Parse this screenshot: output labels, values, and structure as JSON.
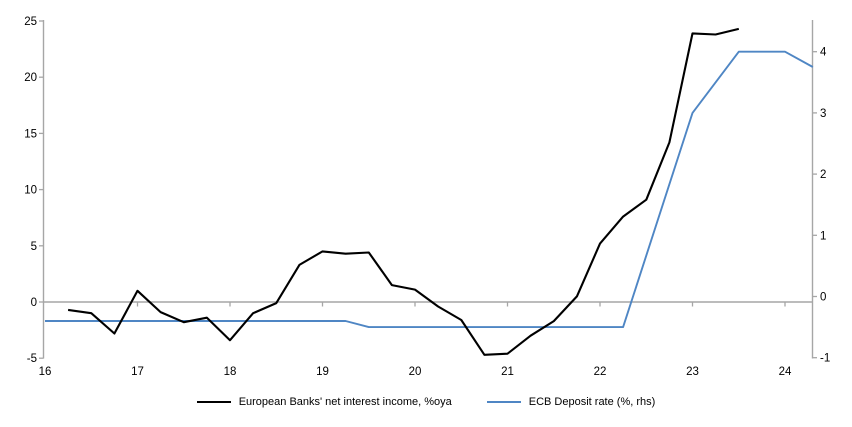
{
  "page": {
    "background": "#ffffff"
  },
  "colors": {
    "nii_line": "#000000",
    "deposit_line": "#4f86c4",
    "axis_gray": "#a6a6a6",
    "label_text": "#000000"
  },
  "legend": {
    "items": [
      {
        "label": "European Banks' net interest income, %oya",
        "color": "#000000"
      },
      {
        "label": "ECB Deposit rate (%, rhs)",
        "color": "#4f86c4"
      }
    ]
  },
  "chart_data": {
    "type": "line",
    "title": "",
    "grid": "zero-line-only",
    "legend_position": "bottom",
    "x_axis": {
      "ticks": [
        "16",
        "17",
        "18",
        "19",
        "20",
        "21",
        "22",
        "23",
        "24"
      ],
      "min": 16,
      "max": 24.3
    },
    "left_axis": {
      "label": "European Banks' net interest income, %oya",
      "ticks": [
        25,
        20,
        15,
        10,
        5,
        0,
        -5
      ],
      "ylim": [
        -5,
        25
      ]
    },
    "right_axis": {
      "label": "ECB Deposit rate (%, rhs)",
      "ticks": [
        4,
        3,
        2,
        1,
        0,
        -1
      ],
      "ylim": [
        -1.1,
        4.6
      ]
    },
    "series": [
      {
        "name": "European Banks' net interest income, %oya",
        "axis": "left",
        "color": "#000000",
        "points": [
          [
            16.25,
            -0.7
          ],
          [
            16.5,
            -1.0
          ],
          [
            16.75,
            -2.8
          ],
          [
            17.0,
            1.0
          ],
          [
            17.25,
            -0.9
          ],
          [
            17.5,
            -1.8
          ],
          [
            17.75,
            -1.4
          ],
          [
            18.0,
            -3.4
          ],
          [
            18.25,
            -1.0
          ],
          [
            18.5,
            -0.1
          ],
          [
            18.75,
            3.3
          ],
          [
            19.0,
            4.5
          ],
          [
            19.25,
            4.3
          ],
          [
            19.5,
            4.4
          ],
          [
            19.75,
            1.5
          ],
          [
            20.0,
            1.1
          ],
          [
            20.25,
            -0.4
          ],
          [
            20.5,
            -1.6
          ],
          [
            20.75,
            -4.7
          ],
          [
            21.0,
            -4.6
          ],
          [
            21.25,
            -3.0
          ],
          [
            21.5,
            -1.7
          ],
          [
            21.75,
            0.5
          ],
          [
            22.0,
            5.2
          ],
          [
            22.25,
            7.6
          ],
          [
            22.5,
            9.1
          ],
          [
            22.75,
            14.2
          ],
          [
            23.0,
            23.9
          ],
          [
            23.25,
            23.8
          ],
          [
            23.5,
            24.3
          ]
        ]
      },
      {
        "name": "ECB Deposit rate (%, rhs)",
        "axis": "right",
        "color": "#4f86c4",
        "points": [
          [
            16.0,
            -0.4
          ],
          [
            19.25,
            -0.4
          ],
          [
            19.5,
            -0.5
          ],
          [
            22.25,
            -0.5
          ],
          [
            23.0,
            3.0
          ],
          [
            23.5,
            4.0
          ],
          [
            24.0,
            4.0
          ],
          [
            24.3,
            3.75
          ]
        ]
      }
    ]
  }
}
